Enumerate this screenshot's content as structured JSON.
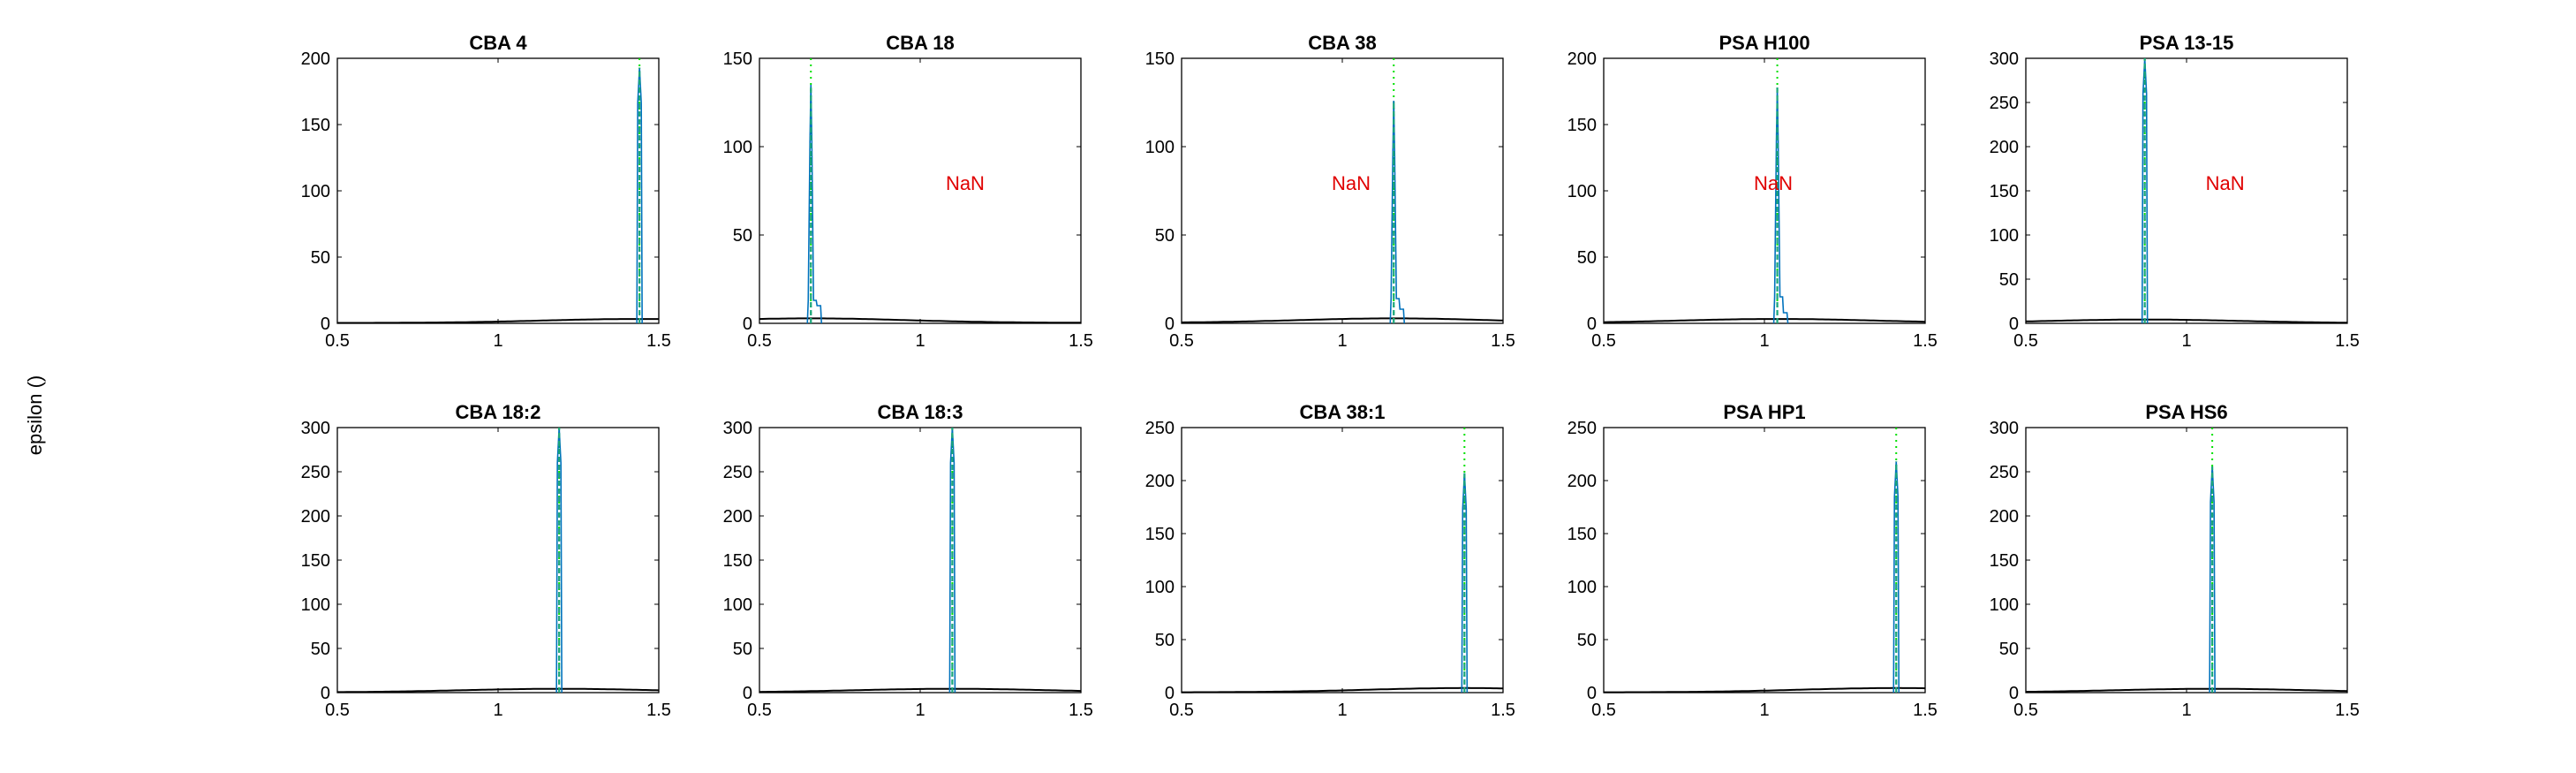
{
  "figure": {
    "ylabel": "epsilon ()"
  },
  "chart_data": [
    {
      "type": "line",
      "title": "CBA 4",
      "xlim": [
        0.5,
        1.5
      ],
      "ylim": [
        0,
        200
      ],
      "xticks": [
        0.5,
        1,
        1.5
      ],
      "yticks": [
        0,
        50,
        100,
        150,
        200
      ],
      "spike_x": 1.44,
      "spike_peak": 193,
      "dotted_line_x": 1.44,
      "nan_label": "",
      "tail_bumps": [],
      "curve_peak": 3
    },
    {
      "type": "line",
      "title": "CBA 18",
      "xlim": [
        0.5,
        1.5
      ],
      "ylim": [
        0,
        150
      ],
      "xticks": [
        0.5,
        1,
        1.5
      ],
      "yticks": [
        0,
        50,
        100,
        150
      ],
      "spike_x": 0.66,
      "spike_peak": 135,
      "dotted_line_x": 0.66,
      "nan_label": "NaN",
      "tail_bumps": [
        13,
        10
      ],
      "curve_peak": 2.5
    },
    {
      "type": "line",
      "title": "CBA 38",
      "xlim": [
        0.5,
        1.5
      ],
      "ylim": [
        0,
        150
      ],
      "xticks": [
        0.5,
        1,
        1.5
      ],
      "yticks": [
        0,
        50,
        100,
        150
      ],
      "spike_x": 1.16,
      "spike_peak": 126,
      "dotted_line_x": 1.16,
      "nan_label": "NaN",
      "tail_bumps": [
        14,
        8
      ],
      "curve_peak": 2.5
    },
    {
      "type": "line",
      "title": "PSA H100",
      "xlim": [
        0.5,
        1.5
      ],
      "ylim": [
        0,
        200
      ],
      "xticks": [
        0.5,
        1,
        1.5
      ],
      "yticks": [
        0,
        50,
        100,
        150,
        200
      ],
      "spike_x": 1.04,
      "spike_peak": 178,
      "dotted_line_x": 1.04,
      "nan_label": "NaN",
      "tail_bumps": [
        20,
        8
      ],
      "curve_peak": 3
    },
    {
      "type": "line",
      "title": "PSA 13-15",
      "xlim": [
        0.5,
        1.5
      ],
      "ylim": [
        0,
        300
      ],
      "xticks": [
        0.5,
        1,
        1.5
      ],
      "yticks": [
        0,
        50,
        100,
        150,
        200,
        250,
        300
      ],
      "spike_x": 0.87,
      "spike_peak": 300,
      "dotted_line_x": 0.87,
      "nan_label": "NaN",
      "tail_bumps": [],
      "curve_peak": 4
    },
    {
      "type": "line",
      "title": "CBA 18:2",
      "xlim": [
        0.5,
        1.5
      ],
      "ylim": [
        0,
        300
      ],
      "xticks": [
        0.5,
        1,
        1.5
      ],
      "yticks": [
        0,
        50,
        100,
        150,
        200,
        250,
        300
      ],
      "spike_x": 1.19,
      "spike_peak": 300,
      "dotted_line_x": 1.19,
      "nan_label": "",
      "tail_bumps": [],
      "curve_peak": 4
    },
    {
      "type": "line",
      "title": "CBA 18:3",
      "xlim": [
        0.5,
        1.5
      ],
      "ylim": [
        0,
        300
      ],
      "xticks": [
        0.5,
        1,
        1.5
      ],
      "yticks": [
        0,
        50,
        100,
        150,
        200,
        250,
        300
      ],
      "spike_x": 1.1,
      "spike_peak": 300,
      "dotted_line_x": 1.1,
      "nan_label": "",
      "tail_bumps": [],
      "curve_peak": 4
    },
    {
      "type": "line",
      "title": "CBA 38:1",
      "xlim": [
        0.5,
        1.5
      ],
      "ylim": [
        0,
        250
      ],
      "xticks": [
        0.5,
        1,
        1.5
      ],
      "yticks": [
        0,
        50,
        100,
        150,
        200,
        250
      ],
      "spike_x": 1.38,
      "spike_peak": 207,
      "dotted_line_x": 1.38,
      "nan_label": "",
      "tail_bumps": [],
      "curve_peak": 4
    },
    {
      "type": "line",
      "title": "PSA HP1",
      "xlim": [
        0.5,
        1.5
      ],
      "ylim": [
        0,
        250
      ],
      "xticks": [
        0.5,
        1,
        1.5
      ],
      "yticks": [
        0,
        50,
        100,
        150,
        200,
        250
      ],
      "spike_x": 1.41,
      "spike_peak": 218,
      "dotted_line_x": 1.41,
      "nan_label": "",
      "tail_bumps": [],
      "curve_peak": 4
    },
    {
      "type": "line",
      "title": "PSA HS6",
      "xlim": [
        0.5,
        1.5
      ],
      "ylim": [
        0,
        300
      ],
      "xticks": [
        0.5,
        1,
        1.5
      ],
      "yticks": [
        0,
        50,
        100,
        150,
        200,
        250,
        300
      ],
      "spike_x": 1.08,
      "spike_peak": 256,
      "dotted_line_x": 1.08,
      "nan_label": "",
      "tail_bumps": [],
      "curve_peak": 4
    }
  ],
  "colors": {
    "spike": "#0072BD",
    "spike_overlay": "#1BA67A",
    "dotted": "#00E000",
    "curve": "#000000",
    "nan": "#E00000",
    "axes": "#000000"
  }
}
